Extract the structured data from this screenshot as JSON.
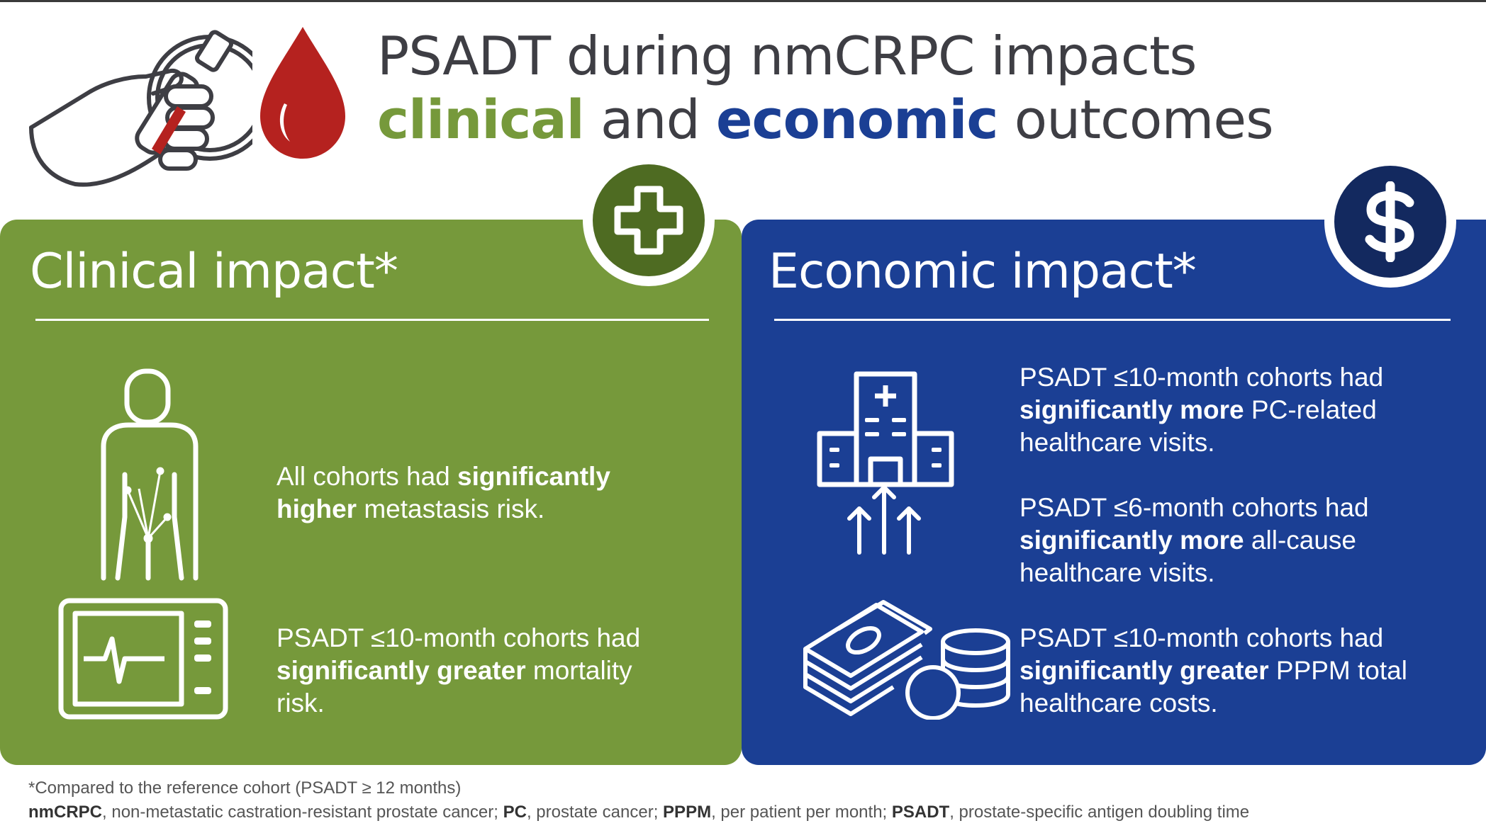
{
  "header": {
    "title_line1": "PSADT during nmCRPC impacts",
    "title_word_clinical": "clinical",
    "title_word_and": " and ",
    "title_word_economic": "economic",
    "title_word_outcomes": " outcomes"
  },
  "clinical": {
    "heading": "Clinical impact*",
    "item1": {
      "pre": "All cohorts had ",
      "bold": "significantly higher",
      "post": " metastasis risk."
    },
    "item2": {
      "pre": "PSADT ≤10-month cohorts had ",
      "bold": "significantly greater",
      "post": " mortality risk."
    }
  },
  "economic": {
    "heading": "Economic impact*",
    "item1": {
      "pre": "PSADT ≤10-month cohorts had ",
      "bold": "significantly more",
      "post": " PC-related healthcare visits."
    },
    "item2": {
      "pre": "PSADT ≤6-month cohorts had ",
      "bold": "significantly more",
      "post": " all-cause healthcare visits."
    },
    "item3": {
      "pre": "PSADT ≤10-month cohorts had ",
      "bold": "significantly greater",
      "post": " PPPM total healthcare costs."
    }
  },
  "footer": {
    "note": "*Compared to the reference cohort (PSADT ≥ 12 months)",
    "abbr": [
      {
        "term": "nmCRPC",
        "def": ", non-metastatic castration-resistant prostate cancer; "
      },
      {
        "term": "PC",
        "def": ", prostate cancer; "
      },
      {
        "term": "PPPM",
        "def": ", per patient per month; "
      },
      {
        "term": "PSADT",
        "def": ", prostate-specific antigen doubling time"
      }
    ]
  },
  "colors": {
    "green": "#76993b",
    "green_dark": "#4e6b22",
    "blue": "#1b3f94",
    "blue_dark": "#13295f",
    "blood_red": "#b5221f"
  },
  "icons": [
    "blood-tube-hand-icon",
    "blood-drop-icon",
    "medical-cross-icon",
    "dollar-icon",
    "human-body-metastasis-icon",
    "heart-monitor-icon",
    "hospital-icon",
    "up-arrows-icon",
    "money-coins-icon"
  ]
}
